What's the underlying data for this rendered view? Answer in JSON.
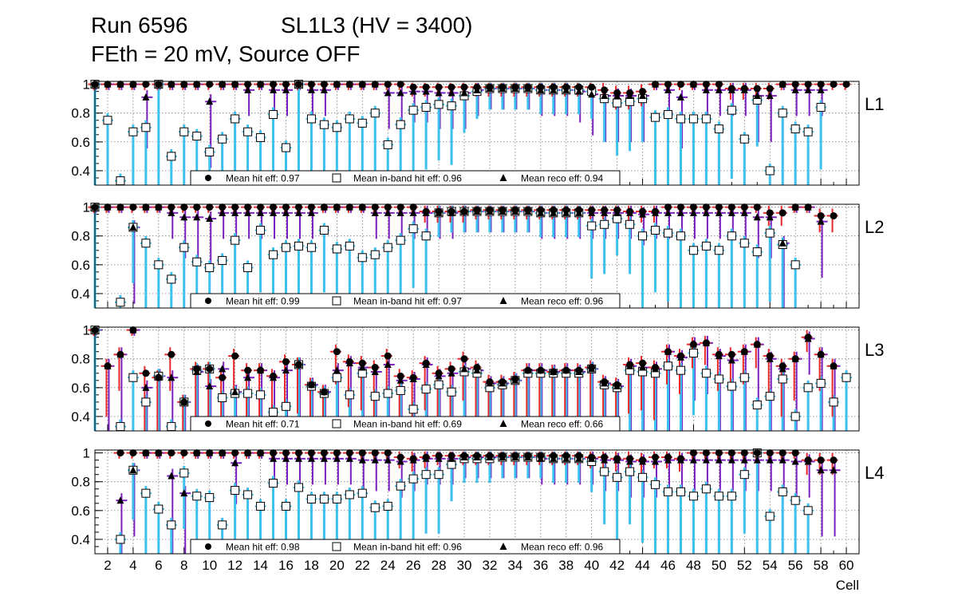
{
  "header": {
    "run": "Run 6596",
    "chamber": "SL1L3 (HV = 3400)",
    "conditions": "FEth = 20 mV, Source OFF"
  },
  "chart_data": {
    "type": "scatter",
    "x_axis": {
      "label": "Cell",
      "range": [
        1,
        61
      ],
      "tick_labels": [
        "2",
        "4",
        "6",
        "8",
        "10",
        "12",
        "14",
        "16",
        "18",
        "20",
        "22",
        "24",
        "26",
        "28",
        "30",
        "32",
        "34",
        "36",
        "38",
        "40",
        "42",
        "44",
        "46",
        "48",
        "50",
        "52",
        "54",
        "56",
        "58",
        "60"
      ]
    },
    "y_axis": {
      "range": [
        0.3,
        1.02
      ],
      "tick_labels": [
        "0.4",
        "0.6",
        "0.8",
        "1"
      ]
    },
    "grid": true,
    "legend_entries": [
      "Mean hit  eff:",
      "Mean in-band hit eff:",
      "Mean reco eff:"
    ],
    "colors": {
      "hit_marker": "#000000",
      "hit_error": "#e8282a",
      "inband_error": "#3cc0ee",
      "reco_error": "#7a1fbf",
      "frame": "#000000",
      "grid": "#666666"
    },
    "panels": [
      {
        "label": "L1",
        "mean_hit_eff": "0.97",
        "mean_inband_eff": "0.96",
        "mean_reco_eff": "0.94",
        "hit": [
          1,
          1,
          1,
          1,
          1,
          1,
          1,
          1,
          1,
          1,
          1,
          1,
          1,
          1,
          1,
          1,
          1,
          1,
          1,
          1,
          1,
          1,
          1,
          1,
          1,
          0.98,
          0.98,
          0.98,
          0.98,
          0.98,
          0.98,
          0.98,
          0.98,
          0.98,
          0.98,
          0.98,
          0.98,
          0.98,
          0.98,
          0.98,
          0.96,
          0.94,
          0.94,
          0.95,
          1,
          1,
          1,
          1,
          1,
          1,
          0.97,
          0.97,
          0.97,
          0.97,
          1,
          1,
          1,
          1,
          1,
          1
        ],
        "inband": [
          1,
          0.75,
          0.33,
          0.67,
          0.7,
          1,
          0.5,
          0.67,
          0.64,
          0.53,
          0.62,
          0.76,
          0.67,
          0.63,
          0.79,
          0.56,
          1,
          0.76,
          0.72,
          0.7,
          0.76,
          0.73,
          0.8,
          0.58,
          0.72,
          0.82,
          0.84,
          0.86,
          0.85,
          0.92,
          0.95,
          0.97,
          0.97,
          0.97,
          0.97,
          0.96,
          0.96,
          0.96,
          0.96,
          0.95,
          0.9,
          0.87,
          0.88,
          0.9,
          0.77,
          0.79,
          0.76,
          0.76,
          0.76,
          0.69,
          0.82,
          0.62,
          0.89,
          0.4,
          0.8,
          0.69,
          0.67,
          0.84,
          null,
          null
        ],
        "reco": [
          1,
          1,
          1,
          1,
          0.91,
          1,
          1,
          1,
          1,
          0.88,
          1,
          1,
          0.96,
          1,
          0.96,
          0.96,
          1,
          0.96,
          0.96,
          1,
          1,
          1,
          1,
          0.94,
          0.94,
          0.95,
          0.95,
          0.94,
          0.94,
          0.94,
          0.96,
          0.97,
          0.97,
          0.97,
          0.97,
          0.96,
          0.96,
          0.96,
          0.95,
          0.93,
          0.92,
          0.92,
          0.92,
          0.92,
          1,
          0.96,
          0.91,
          1,
          0.96,
          0.96,
          0.96,
          0.96,
          0.92,
          0.92,
          1,
          0.96,
          0.96,
          0.96,
          null,
          null
        ]
      },
      {
        "label": "L2",
        "mean_hit_eff": "0.99",
        "mean_inband_eff": "0.97",
        "mean_reco_eff": "0.96",
        "hit": [
          1,
          1,
          1,
          1,
          1,
          1,
          1,
          1,
          1,
          1,
          1,
          1,
          1,
          1,
          1,
          1,
          1,
          1,
          1,
          1,
          1,
          1,
          1,
          1,
          1,
          1,
          0.97,
          0.97,
          0.97,
          0.97,
          0.98,
          0.98,
          0.98,
          0.98,
          0.98,
          0.98,
          0.98,
          0.98,
          0.98,
          0.98,
          0.98,
          0.98,
          0.97,
          0.97,
          0.97,
          1,
          1,
          1,
          1,
          1,
          1,
          1,
          1,
          0.96,
          0.96,
          1,
          1,
          0.94,
          0.94,
          null
        ],
        "inband": [
          1,
          null,
          0.34,
          0.86,
          0.75,
          0.6,
          0.5,
          0.72,
          0.62,
          0.58,
          0.63,
          0.77,
          0.58,
          0.84,
          0.67,
          0.72,
          0.73,
          0.72,
          0.84,
          0.71,
          0.73,
          0.65,
          0.67,
          0.72,
          0.77,
          0.85,
          0.8,
          0.96,
          0.97,
          0.97,
          0.97,
          0.97,
          0.97,
          0.97,
          0.97,
          0.96,
          0.96,
          0.96,
          0.96,
          0.87,
          0.88,
          0.92,
          0.88,
          0.8,
          0.84,
          0.82,
          0.8,
          0.7,
          0.73,
          0.7,
          0.8,
          0.75,
          0.69,
          0.82,
          0.74,
          0.6,
          null,
          null,
          null,
          null
        ],
        "reco": [
          1,
          1,
          1,
          0.86,
          1,
          1,
          0.96,
          0.93,
          0.93,
          0.92,
          0.96,
          0.96,
          0.96,
          0.96,
          0.96,
          0.96,
          0.96,
          0.96,
          1,
          1,
          1,
          1,
          0.96,
          0.96,
          0.96,
          0.96,
          0.96,
          0.96,
          0.96,
          0.97,
          0.97,
          0.97,
          0.97,
          0.97,
          0.97,
          0.96,
          0.96,
          0.96,
          0.96,
          0.96,
          0.96,
          0.96,
          0.96,
          0.95,
          0.96,
          0.96,
          0.96,
          0.96,
          0.96,
          0.96,
          0.96,
          0.96,
          0.93,
          0.93,
          0.75,
          1,
          1,
          0.9,
          null,
          null
        ]
      },
      {
        "label": "L3",
        "mean_hit_eff": "0.71",
        "mean_inband_eff": "0.69",
        "mean_reco_eff": "0.66",
        "hit": [
          1,
          0.75,
          0.83,
          1,
          0.7,
          0.67,
          0.83,
          0.5,
          0.73,
          0.73,
          0.67,
          0.82,
          0.72,
          0.72,
          0.68,
          0.78,
          0.76,
          0.62,
          0.57,
          0.85,
          0.78,
          0.77,
          0.74,
          0.82,
          0.68,
          0.67,
          0.77,
          0.7,
          0.73,
          0.8,
          0.74,
          0.64,
          0.64,
          0.66,
          0.72,
          0.72,
          0.71,
          0.72,
          0.72,
          0.74,
          0.64,
          0.62,
          0.76,
          0.77,
          0.74,
          0.85,
          0.82,
          0.9,
          0.91,
          0.83,
          0.83,
          0.85,
          0.9,
          0.82,
          0.75,
          0.8,
          0.95,
          0.83,
          0.75,
          null
        ],
        "inband": [
          1,
          null,
          0.33,
          0.67,
          0.5,
          0.68,
          0.33,
          0.5,
          0.72,
          0.73,
          0.53,
          0.56,
          0.56,
          0.55,
          0.43,
          0.47,
          0.76,
          0.61,
          0.56,
          0.67,
          0.55,
          0.7,
          0.54,
          0.56,
          0.58,
          0.45,
          0.59,
          0.62,
          0.57,
          0.71,
          0.7,
          0.6,
          0.62,
          0.65,
          0.7,
          0.7,
          0.7,
          0.7,
          0.7,
          0.73,
          0.62,
          0.6,
          0.72,
          0.71,
          0.7,
          0.75,
          0.72,
          0.84,
          0.7,
          0.66,
          0.61,
          0.67,
          0.48,
          0.54,
          0.66,
          0.4,
          0.6,
          0.63,
          0.5,
          0.67
        ],
        "reco": [
          1,
          0.75,
          0.83,
          1,
          0.6,
          0.68,
          0.67,
          0.5,
          0.71,
          0.61,
          0.73,
          0.57,
          0.67,
          0.72,
          0.67,
          0.72,
          0.76,
          0.62,
          0.57,
          0.72,
          0.77,
          0.74,
          0.71,
          0.76,
          0.65,
          0.66,
          0.76,
          0.68,
          0.7,
          0.73,
          0.72,
          0.63,
          0.63,
          0.65,
          0.72,
          0.72,
          0.71,
          0.72,
          0.71,
          0.73,
          0.63,
          0.61,
          0.75,
          0.74,
          0.73,
          0.85,
          0.81,
          0.9,
          0.91,
          0.82,
          0.79,
          0.85,
          0.9,
          0.8,
          0.73,
          0.8,
          0.94,
          0.83,
          0.75,
          null
        ]
      },
      {
        "label": "L4",
        "mean_hit_eff": "0.98",
        "mean_inband_eff": "0.96",
        "mean_reco_eff": "0.96",
        "hit": [
          null,
          null,
          1,
          1,
          1,
          1,
          1,
          1,
          1,
          1,
          1,
          1,
          1,
          1,
          1,
          1,
          1,
          1,
          1,
          1,
          1,
          1,
          1,
          1,
          0.97,
          0.96,
          0.97,
          0.98,
          0.98,
          0.98,
          0.98,
          0.98,
          0.98,
          0.98,
          0.98,
          0.98,
          0.98,
          0.98,
          0.98,
          0.97,
          0.97,
          0.96,
          0.96,
          0.95,
          0.97,
          0.97,
          0.96,
          1,
          1,
          1,
          1,
          1,
          1,
          1,
          1,
          1,
          0.95,
          0.95,
          0.95,
          null
        ],
        "inband": [
          null,
          null,
          0.4,
          0.88,
          0.72,
          0.61,
          0.5,
          0.86,
          0.7,
          0.69,
          0.5,
          0.74,
          0.71,
          0.63,
          0.79,
          0.63,
          0.76,
          0.68,
          0.68,
          0.68,
          0.71,
          0.72,
          0.62,
          0.63,
          0.77,
          0.82,
          0.85,
          0.85,
          0.92,
          0.96,
          0.96,
          0.96,
          0.97,
          0.97,
          0.97,
          0.97,
          0.96,
          0.96,
          0.96,
          0.94,
          0.87,
          0.83,
          0.87,
          0.83,
          0.78,
          0.73,
          0.73,
          0.7,
          0.75,
          0.7,
          0.7,
          0.85,
          1,
          0.56,
          0.73,
          0.67,
          0.6,
          null,
          null,
          null
        ],
        "reco": [
          null,
          null,
          0.67,
          0.88,
          1,
          1,
          0.84,
          0.72,
          1,
          1,
          1,
          0.93,
          1,
          1,
          0.96,
          0.96,
          0.96,
          0.96,
          0.96,
          0.96,
          0.96,
          0.95,
          0.95,
          0.95,
          0.94,
          0.95,
          0.96,
          0.96,
          0.96,
          0.97,
          0.97,
          0.97,
          0.97,
          0.97,
          0.97,
          0.96,
          0.96,
          0.96,
          0.96,
          0.96,
          0.95,
          0.95,
          0.94,
          0.94,
          0.94,
          0.95,
          0.95,
          0.95,
          0.95,
          0.95,
          0.95,
          0.95,
          0.95,
          0.95,
          0.95,
          0.94,
          0.94,
          0.88,
          0.88,
          null
        ]
      }
    ]
  }
}
